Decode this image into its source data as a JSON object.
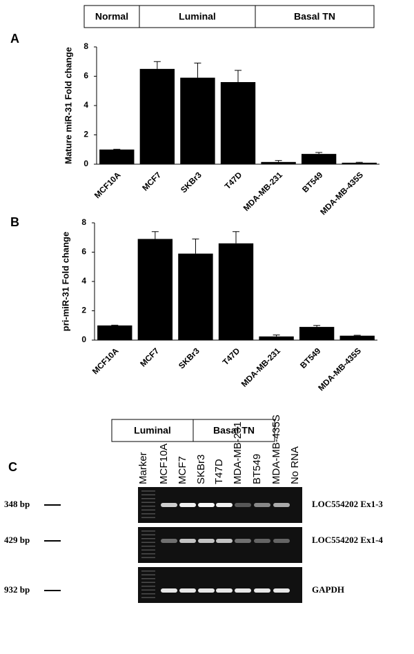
{
  "chart_data": [
    {
      "type": "bar",
      "panel": "A",
      "groups": [
        "Normal",
        "Luminal",
        "Basal TN"
      ],
      "y_label": "Mature miR-31 Fold change",
      "categories": [
        "MCF10A",
        "MCF7",
        "SKBr3",
        "T47D",
        "MDA-MB-231",
        "BT549",
        "MDA-MB-435S"
      ],
      "values": [
        1.0,
        6.5,
        5.9,
        5.6,
        0.15,
        0.7,
        0.1
      ],
      "errors": [
        0.02,
        0.5,
        1.0,
        0.8,
        0.1,
        0.1,
        0.03
      ],
      "color": "#000000",
      "ylim": [
        0,
        8
      ],
      "yticks": [
        0,
        2,
        4,
        6,
        8
      ]
    },
    {
      "type": "bar",
      "panel": "B",
      "y_label": "pri-miR-31 Fold change",
      "categories": [
        "MCF10A",
        "MCF7",
        "SKBr3",
        "T47D",
        "MDA-MB-231",
        "BT549",
        "MDA-MB-435S"
      ],
      "values": [
        1.0,
        6.9,
        5.9,
        6.6,
        0.25,
        0.9,
        0.3
      ],
      "errors": [
        0.02,
        0.5,
        1.0,
        0.8,
        0.1,
        0.1,
        0.03
      ],
      "color": "#000000",
      "ylim": [
        0,
        8
      ],
      "yticks": [
        0,
        2,
        4,
        6,
        8
      ]
    }
  ],
  "gel": {
    "panel": "C",
    "groups": [
      "Luminal",
      "Basal TN"
    ],
    "lanes": [
      "Marker",
      "MCF10A",
      "MCF7",
      "SKBr3",
      "T47D",
      "MDA-MB-231",
      "BT549",
      "MDA-MB-435S",
      "No RNA"
    ],
    "rows": [
      {
        "size": "348 bp",
        "name": "LOC554202 Ex1-3"
      },
      {
        "size": "429 bp",
        "name": "LOC554202 Ex1-4"
      },
      {
        "size": "932 bp",
        "name": "GAPDH"
      }
    ]
  }
}
